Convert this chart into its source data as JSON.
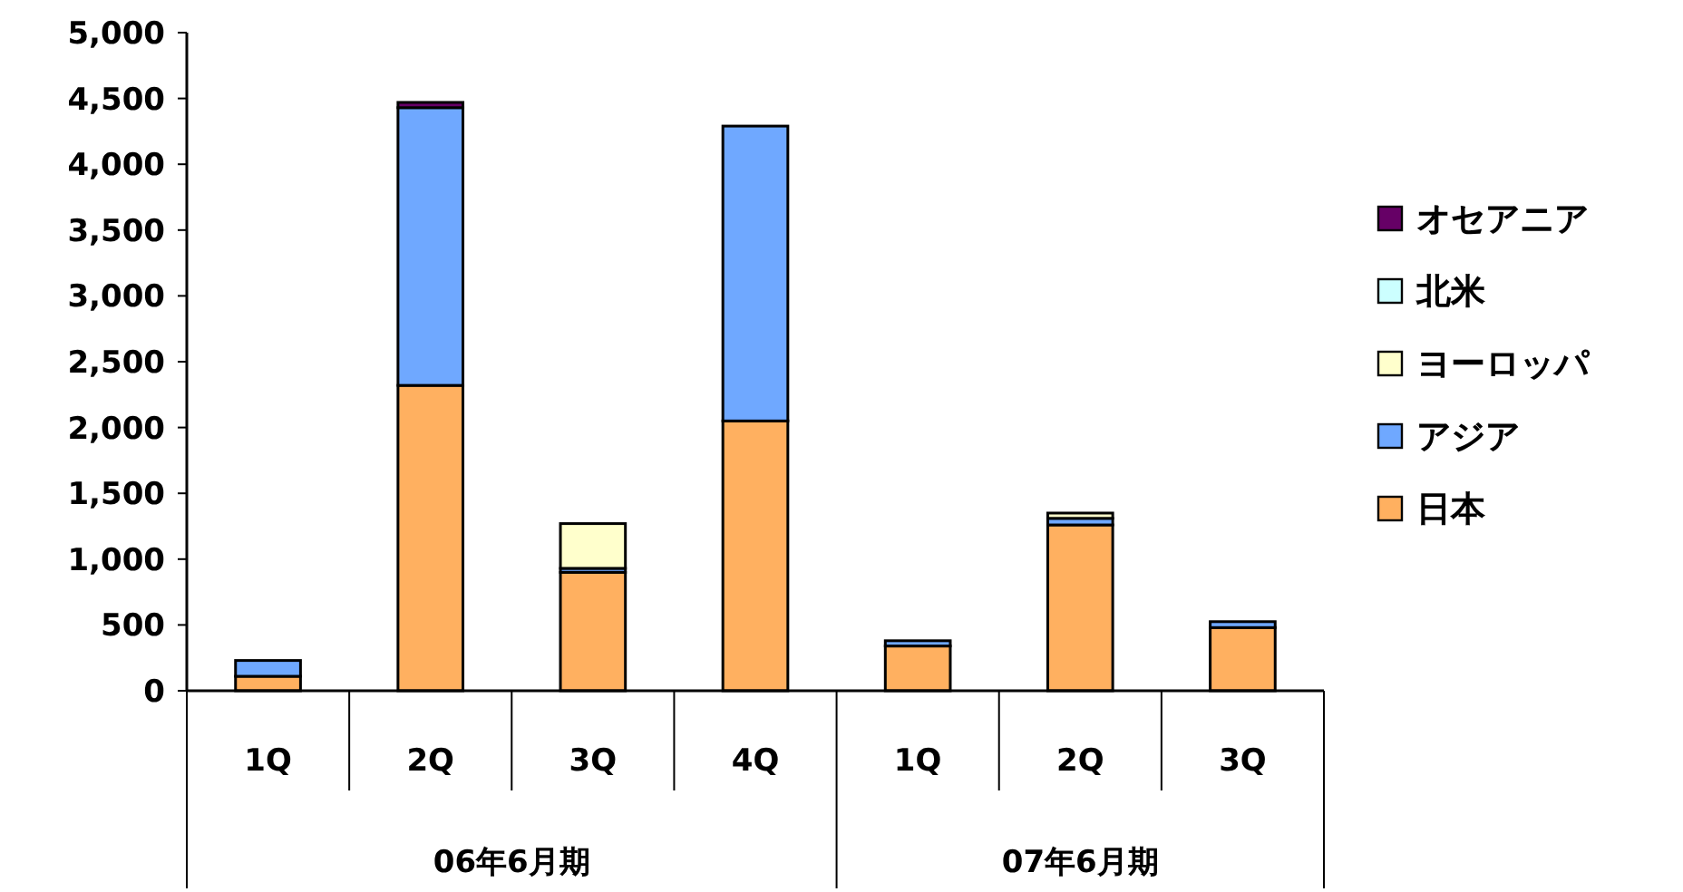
{
  "chart_data": {
    "type": "bar",
    "stacked": true,
    "categories": [
      "1Q",
      "2Q",
      "3Q",
      "4Q",
      "1Q",
      "2Q",
      "3Q"
    ],
    "annotations": [
      "06年6月期",
      "07年6月期"
    ],
    "series": [
      {
        "name": "日本",
        "color": "#ffb060",
        "values": [
          110,
          2320,
          900,
          2050,
          340,
          1260,
          480
        ]
      },
      {
        "name": "アジア",
        "color": "#6fa8ff",
        "values": [
          120,
          2110,
          30,
          2240,
          40,
          50,
          45
        ]
      },
      {
        "name": "ヨーロッパ",
        "color": "#ffffcc",
        "values": [
          0,
          0,
          340,
          0,
          0,
          40,
          0
        ]
      },
      {
        "name": "北米",
        "color": "#ccffff",
        "values": [
          0,
          0,
          0,
          0,
          0,
          0,
          0
        ]
      },
      {
        "name": "オセアニア",
        "color": "#660066",
        "values": [
          0,
          40,
          0,
          0,
          0,
          0,
          0
        ]
      }
    ],
    "ylim": [
      0,
      5000
    ],
    "yticks": [
      0,
      500,
      {
        "value": 1000,
        "label": "1,000"
      },
      {
        "value": 1500,
        "label": "1,500"
      },
      {
        "value": 2000,
        "label": "2,000"
      },
      {
        "value": 2500,
        "label": "2,500"
      },
      {
        "value": 3000,
        "label": "3,000"
      },
      {
        "value": 3500,
        "label": "3,500"
      },
      {
        "value": 4000,
        "label": "4,000"
      },
      {
        "value": 4500,
        "label": "4,500"
      },
      {
        "value": 5000,
        "label": "5,000"
      }
    ],
    "grid": false,
    "legend": "right"
  }
}
